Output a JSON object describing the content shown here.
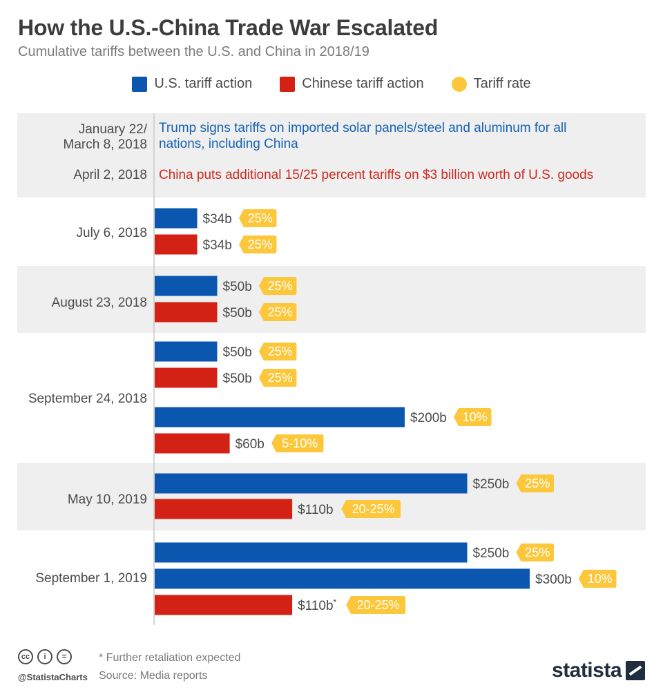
{
  "header": {
    "title": "How the U.S.-China Trade War Escalated",
    "subtitle": "Cumulative tariffs between the U.S. and China in 2018/19"
  },
  "legend": {
    "us_label": "U.S. tariff action",
    "china_label": "Chinese tariff action",
    "rate_label": "Tariff rate"
  },
  "colors": {
    "us": "#0b57b0",
    "china": "#d42115",
    "rate": "#fcc73a",
    "band": "#efefef",
    "us_text": "#1560b3",
    "china_text": "#cc2a1f"
  },
  "chart_data": {
    "type": "bar",
    "orientation": "horizontal",
    "unit": "billion USD",
    "text_events": [
      {
        "date_lines": [
          "January 22/",
          "March 8, 2018"
        ],
        "party": "us",
        "text_lines": [
          "Trump signs tariffs on imported solar panels/steel and aluminum for all",
          "nations, including China"
        ]
      },
      {
        "date_lines": [
          "April 2, 2018"
        ],
        "party": "china",
        "text_lines": [
          "China puts additional 15/25 percent tariffs on $3 billion worth of U.S. goods"
        ]
      }
    ],
    "groups": [
      {
        "date": "July 6, 2018",
        "bars": [
          {
            "party": "us",
            "value": 34,
            "label": "$34b",
            "rate": "25%"
          },
          {
            "party": "china",
            "value": 34,
            "label": "$34b",
            "rate": "25%"
          }
        ]
      },
      {
        "date": "August 23, 2018",
        "bars": [
          {
            "party": "us",
            "value": 50,
            "label": "$50b",
            "rate": "25%"
          },
          {
            "party": "china",
            "value": 50,
            "label": "$50b",
            "rate": "25%"
          }
        ]
      },
      {
        "date": "September 24, 2018",
        "bars": [
          {
            "party": "us",
            "value": 50,
            "label": "$50b",
            "rate": "25%"
          },
          {
            "party": "china",
            "value": 50,
            "label": "$50b",
            "rate": "25%"
          },
          {
            "party": "us",
            "value": 200,
            "label": "$200b",
            "rate": "10%"
          },
          {
            "party": "china",
            "value": 60,
            "label": "$60b",
            "rate": "5-10%"
          }
        ]
      },
      {
        "date": "May 10, 2019",
        "bars": [
          {
            "party": "us",
            "value": 250,
            "label": "$250b",
            "rate": "25%"
          },
          {
            "party": "china",
            "value": 110,
            "label": "$110b",
            "rate": "20-25%"
          }
        ]
      },
      {
        "date": "September 1, 2019",
        "bars": [
          {
            "party": "us",
            "value": 250,
            "label": "$250b",
            "rate": "25%"
          },
          {
            "party": "us",
            "value": 300,
            "label": "$300b",
            "rate": "10%"
          },
          {
            "party": "china",
            "value": 110,
            "label": "$110b*",
            "rate": "20-25%"
          }
        ]
      }
    ]
  },
  "footer": {
    "note": "* Further retaliation expected",
    "source": "Source: Media reports",
    "handle": "@StatistaCharts",
    "brand": "statista",
    "icons": [
      "cc-icon",
      "by-icon",
      "nd-icon"
    ],
    "icon_glyphs": [
      "cc",
      "i",
      "="
    ]
  }
}
